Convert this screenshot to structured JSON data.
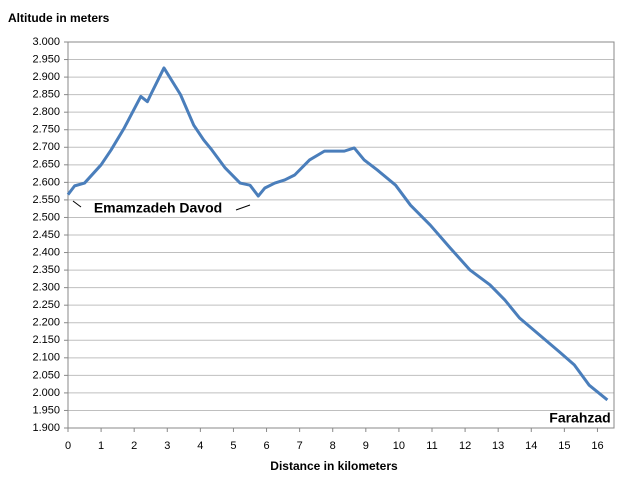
{
  "chart_data": {
    "type": "line",
    "title": "Altitude in meters",
    "x_label": "Distance in kilometers",
    "annotations": [
      "Emamzadeh Davod",
      "Farahzad"
    ],
    "x": [
      0,
      0.2,
      0.5,
      1.0,
      1.3,
      1.7,
      2.2,
      2.4,
      2.5,
      2.9,
      3.4,
      3.8,
      4.1,
      4.35,
      4.75,
      5.2,
      5.5,
      5.75,
      5.95,
      6.25,
      6.55,
      6.85,
      7.3,
      7.75,
      8.35,
      8.65,
      8.95,
      9.35,
      9.9,
      10.35,
      10.95,
      11.55,
      12.15,
      12.75,
      13.2,
      13.65,
      14.25,
      14.85,
      15.3,
      15.75,
      16.3
    ],
    "series": [
      {
        "name": "Altitude",
        "color": "#4a7ebb",
        "values": [
          2565,
          2590,
          2598,
          2650,
          2692,
          2755,
          2845,
          2830,
          2850,
          2926,
          2850,
          2763,
          2721,
          2692,
          2641,
          2598,
          2592,
          2561,
          2584,
          2598,
          2607,
          2621,
          2664,
          2689,
          2689,
          2698,
          2664,
          2635,
          2592,
          2535,
          2478,
          2413,
          2350,
          2308,
          2265,
          2213,
          2165,
          2117,
          2080,
          2022,
          1980
        ]
      }
    ],
    "xlim": [
      0,
      16.5
    ],
    "xticks": [
      0,
      1,
      2,
      3,
      4,
      5,
      6,
      7,
      8,
      9,
      10,
      11,
      12,
      13,
      14,
      15,
      16
    ],
    "ylim": [
      1900,
      3000
    ],
    "yticks": [
      {
        "value": 1900,
        "label": "1.900"
      },
      {
        "value": 1950,
        "label": "1.950"
      },
      {
        "value": 2000,
        "label": "2.000"
      },
      {
        "value": 2050,
        "label": "2.050"
      },
      {
        "value": 2100,
        "label": "2.100"
      },
      {
        "value": 2150,
        "label": "2.150"
      },
      {
        "value": 2200,
        "label": "2.200"
      },
      {
        "value": 2250,
        "label": "2.250"
      },
      {
        "value": 2300,
        "label": "2.300"
      },
      {
        "value": 2350,
        "label": "2.350"
      },
      {
        "value": 2400,
        "label": "2.400"
      },
      {
        "value": 2450,
        "label": "2.450"
      },
      {
        "value": 2500,
        "label": "2.500"
      },
      {
        "value": 2550,
        "label": "2.550"
      },
      {
        "value": 2600,
        "label": "2.600"
      },
      {
        "value": 2650,
        "label": "2.650"
      },
      {
        "value": 2700,
        "label": "2.700"
      },
      {
        "value": 2750,
        "label": "2.750"
      },
      {
        "value": 2800,
        "label": "2.800"
      },
      {
        "value": 2850,
        "label": "2.850"
      },
      {
        "value": 2900,
        "label": "2.900"
      },
      {
        "value": 2950,
        "label": "2.950"
      },
      {
        "value": 3000,
        "label": "3.000"
      }
    ],
    "grid": true
  }
}
